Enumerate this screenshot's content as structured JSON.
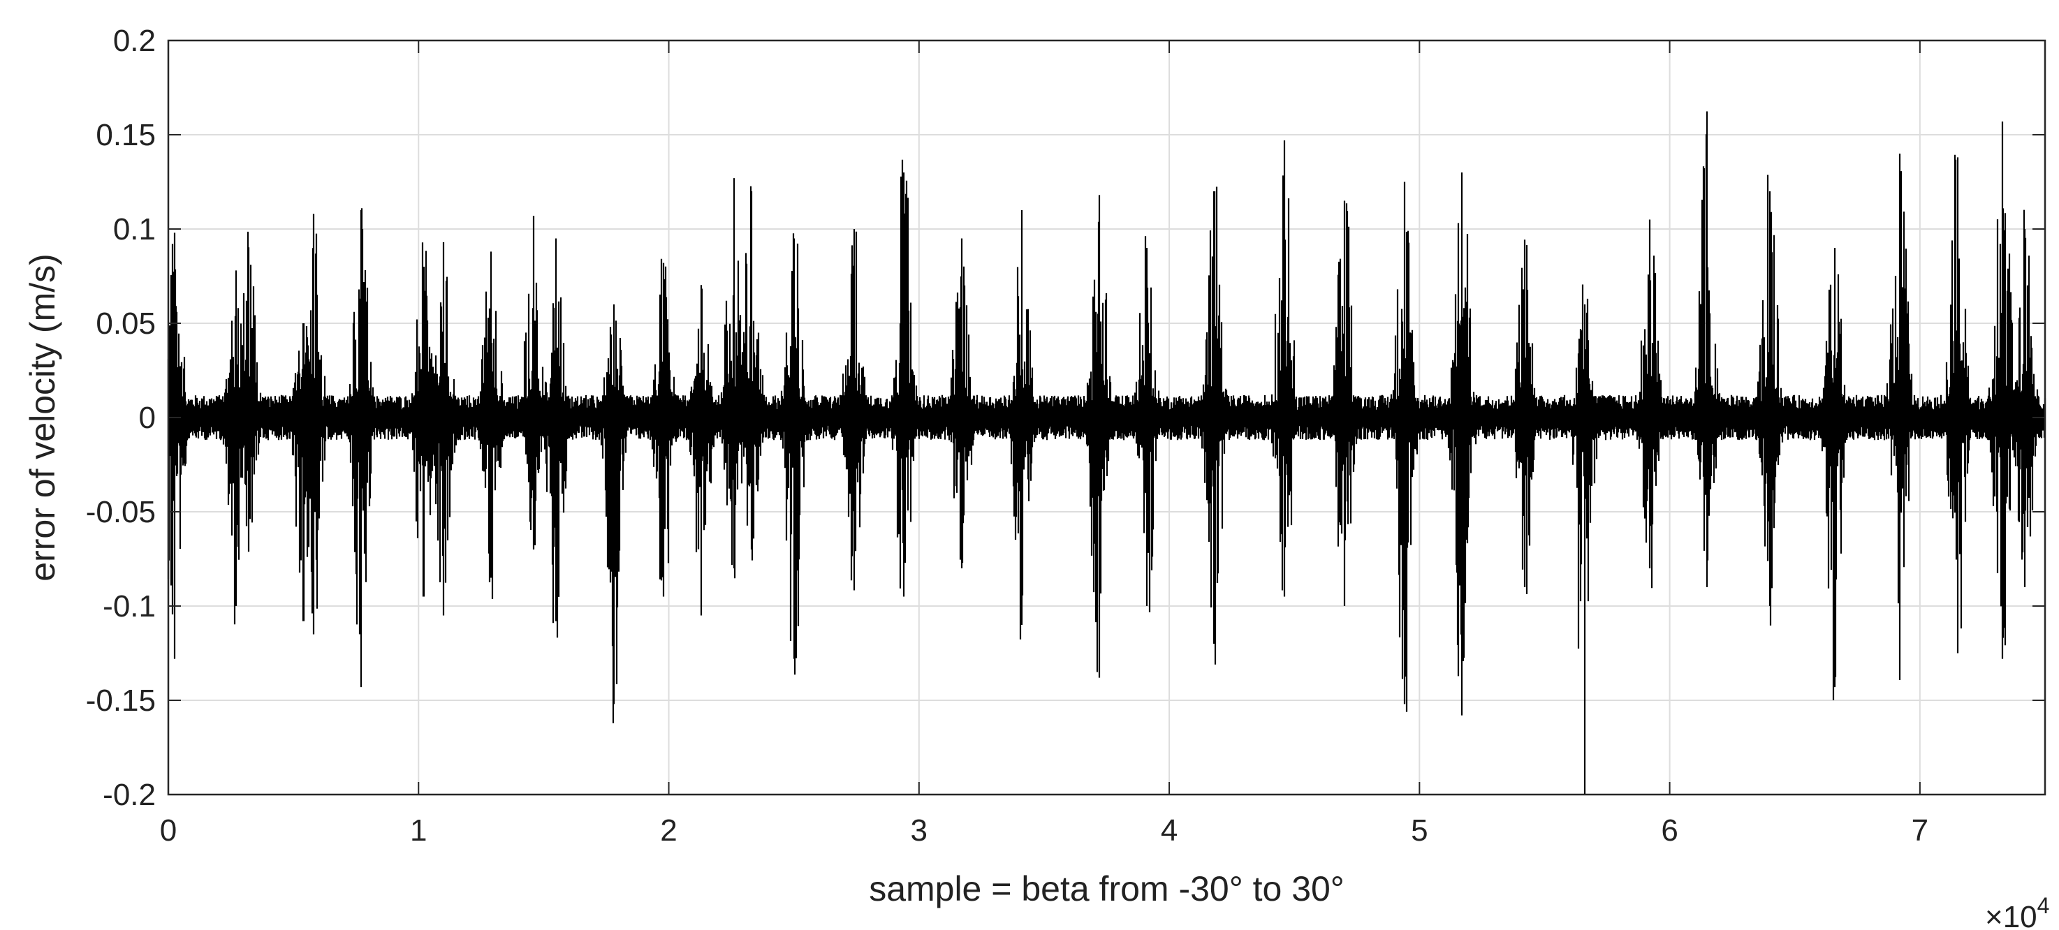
{
  "chart_data": {
    "type": "line",
    "title": "",
    "xlabel": "sample = beta from -30° to 30°",
    "ylabel": "error of velocity (m/s)",
    "x_exponent_label": "×10",
    "x_exponent_power": "4",
    "xlim": [
      0,
      75000
    ],
    "ylim": [
      -0.2,
      0.2
    ],
    "grid": true,
    "x_ticks": [
      0,
      10000,
      20000,
      30000,
      40000,
      50000,
      60000,
      70000
    ],
    "x_tick_labels": [
      "0",
      "1",
      "2",
      "3",
      "4",
      "5",
      "6",
      "7"
    ],
    "y_ticks": [
      0.2,
      0.15,
      0.1,
      0.05,
      0,
      -0.05,
      -0.1,
      -0.15,
      -0.2
    ],
    "y_tick_labels": [
      "0.2",
      "0.15",
      "0.1",
      "0.05",
      "0",
      "-0.05",
      "-0.1",
      "-0.15",
      "-0.2"
    ],
    "colors": {
      "line": "#000000",
      "grid": "#dddddd",
      "axes": "#262626",
      "background": "#ffffff"
    },
    "series": [
      {
        "samples": 75000,
        "baseline_noise_amplitude": 0.008,
        "bursts": [
          {
            "x": 250,
            "max": 0.098,
            "min": -0.128
          },
          {
            "x": 2700,
            "max": 0.078,
            "min": -0.1
          },
          {
            "x": 3200,
            "max": 0.09,
            "min": -0.06
          },
          {
            "x": 5400,
            "max": 0.05,
            "min": -0.108
          },
          {
            "x": 5800,
            "max": 0.108,
            "min": -0.115
          },
          {
            "x": 7700,
            "max": 0.11,
            "min": -0.143
          },
          {
            "x": 10200,
            "max": 0.08,
            "min": -0.095
          },
          {
            "x": 11000,
            "max": 0.085,
            "min": -0.105
          },
          {
            "x": 12900,
            "max": 0.088,
            "min": -0.085
          },
          {
            "x": 14600,
            "max": 0.107,
            "min": -0.07
          },
          {
            "x": 15500,
            "max": 0.095,
            "min": -0.108
          },
          {
            "x": 17800,
            "max": 0.06,
            "min": -0.152
          },
          {
            "x": 19800,
            "max": 0.082,
            "min": -0.095
          },
          {
            "x": 21300,
            "max": 0.06,
            "min": -0.105
          },
          {
            "x": 22600,
            "max": 0.127,
            "min": -0.08
          },
          {
            "x": 23300,
            "max": 0.12,
            "min": -0.07
          },
          {
            "x": 25000,
            "max": 0.095,
            "min": -0.128
          },
          {
            "x": 27400,
            "max": 0.1,
            "min": -0.085
          },
          {
            "x": 29400,
            "max": 0.13,
            "min": -0.095
          },
          {
            "x": 31700,
            "max": 0.095,
            "min": -0.08
          },
          {
            "x": 34100,
            "max": 0.11,
            "min": -0.11
          },
          {
            "x": 37200,
            "max": 0.118,
            "min": -0.138
          },
          {
            "x": 39100,
            "max": 0.09,
            "min": -0.1
          },
          {
            "x": 41800,
            "max": 0.12,
            "min": -0.12
          },
          {
            "x": 44600,
            "max": 0.147,
            "min": -0.095
          },
          {
            "x": 47000,
            "max": 0.115,
            "min": -0.1
          },
          {
            "x": 49400,
            "max": 0.125,
            "min": -0.152
          },
          {
            "x": 51700,
            "max": 0.13,
            "min": -0.158
          },
          {
            "x": 54200,
            "max": 0.09,
            "min": -0.09
          },
          {
            "x": 56600,
            "max": 0.06,
            "min": -0.2
          },
          {
            "x": 59200,
            "max": 0.105,
            "min": -0.08
          },
          {
            "x": 61500,
            "max": 0.15,
            "min": -0.09
          },
          {
            "x": 64000,
            "max": 0.12,
            "min": -0.1
          },
          {
            "x": 66600,
            "max": 0.09,
            "min": -0.143
          },
          {
            "x": 69200,
            "max": 0.14,
            "min": -0.125
          },
          {
            "x": 71500,
            "max": 0.138,
            "min": -0.125
          },
          {
            "x": 73300,
            "max": 0.157,
            "min": -0.128
          },
          {
            "x": 74200,
            "max": 0.1,
            "min": -0.09
          }
        ]
      }
    ]
  }
}
